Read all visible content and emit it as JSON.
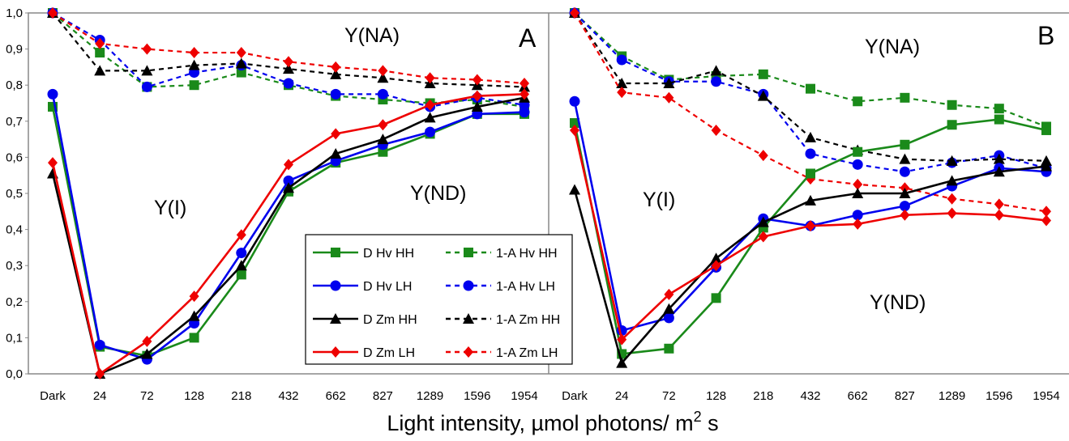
{
  "chart_data": {
    "type": "line",
    "xlabel_main": "Light intensity, µmol photons/ m",
    "xlabel_sup": "2",
    "xlabel_tail": " s",
    "categories": [
      "Dark",
      "24",
      "72",
      "128",
      "218",
      "432",
      "662",
      "827",
      "1289",
      "1596",
      "1954"
    ],
    "ylim": [
      0,
      1
    ],
    "yticks": [
      "0,0",
      "0,1",
      "0,2",
      "0,3",
      "0,4",
      "0,5",
      "0,6",
      "0,7",
      "0,8",
      "0,9",
      "1,0"
    ],
    "legend": {
      "placement": "center-bottom of panel A",
      "entries": [
        {
          "label": "D Hv HH",
          "color": "#1a8a1a",
          "marker": "square",
          "dashed": false
        },
        {
          "label": "1-A Hv HH",
          "color": "#1a8a1a",
          "marker": "square",
          "dashed": true
        },
        {
          "label": "D Hv LH",
          "color": "#0000ee",
          "marker": "circle",
          "dashed": false
        },
        {
          "label": "1-A Hv LH",
          "color": "#0000ee",
          "marker": "circle",
          "dashed": true
        },
        {
          "label": "D Zm HH",
          "color": "#000000",
          "marker": "triangle",
          "dashed": false
        },
        {
          "label": "1-A Zm HH",
          "color": "#000000",
          "marker": "triangle",
          "dashed": true
        },
        {
          "label": "D Zm LH",
          "color": "#ee0000",
          "marker": "diamond",
          "dashed": false
        },
        {
          "label": "1-A Zm LH",
          "color": "#ee0000",
          "marker": "diamond",
          "dashed": true
        }
      ]
    },
    "panels": [
      {
        "letter": "A",
        "region_labels": [
          "Y(NA)",
          "Y(I)",
          "Y(ND)"
        ],
        "series": [
          {
            "name": "1-A Hv HH",
            "values": [
              1.0,
              0.89,
              0.795,
              0.8,
              0.835,
              0.8,
              0.77,
              0.76,
              0.75,
              0.76,
              0.74
            ]
          },
          {
            "name": "1-A Hv LH",
            "values": [
              1.0,
              0.925,
              0.795,
              0.835,
              0.855,
              0.805,
              0.775,
              0.775,
              0.74,
              0.765,
              0.745
            ]
          },
          {
            "name": "1-A Zm HH",
            "values": [
              1.0,
              0.84,
              0.84,
              0.855,
              0.86,
              0.845,
              0.83,
              0.82,
              0.805,
              0.8,
              0.795
            ]
          },
          {
            "name": "1-A Zm LH",
            "values": [
              1.0,
              0.915,
              0.9,
              0.89,
              0.89,
              0.865,
              0.85,
              0.84,
              0.82,
              0.815,
              0.805
            ]
          },
          {
            "name": "D Hv HH",
            "values": [
              0.74,
              0.075,
              0.05,
              0.1,
              0.275,
              0.505,
              0.585,
              0.615,
              0.665,
              0.72,
              0.72
            ]
          },
          {
            "name": "D Hv LH",
            "values": [
              0.775,
              0.08,
              0.04,
              0.14,
              0.335,
              0.535,
              0.59,
              0.635,
              0.67,
              0.72,
              0.725
            ]
          },
          {
            "name": "D Zm HH",
            "values": [
              0.555,
              0.0,
              0.055,
              0.16,
              0.3,
              0.515,
              0.61,
              0.65,
              0.71,
              0.74,
              0.765
            ]
          },
          {
            "name": "D Zm LH",
            "values": [
              0.585,
              0.0,
              0.09,
              0.215,
              0.385,
              0.58,
              0.665,
              0.69,
              0.745,
              0.77,
              0.775
            ]
          }
        ]
      },
      {
        "letter": "B",
        "region_labels": [
          "Y(NA)",
          "Y(I)",
          "Y(ND)"
        ],
        "series": [
          {
            "name": "1-A Hv HH",
            "values": [
              1.0,
              0.88,
              0.815,
              0.825,
              0.83,
              0.79,
              0.755,
              0.765,
              0.745,
              0.735,
              0.685
            ]
          },
          {
            "name": "1-A Hv LH",
            "values": [
              1.0,
              0.87,
              0.81,
              0.81,
              0.775,
              0.61,
              0.58,
              0.56,
              0.585,
              0.605,
              0.57
            ]
          },
          {
            "name": "1-A Zm HH",
            "values": [
              1.0,
              0.805,
              0.805,
              0.84,
              0.77,
              0.655,
              0.62,
              0.595,
              0.59,
              0.595,
              0.59
            ]
          },
          {
            "name": "1-A Zm LH",
            "values": [
              1.0,
              0.78,
              0.765,
              0.675,
              0.605,
              0.54,
              0.525,
              0.515,
              0.485,
              0.47,
              0.45
            ]
          },
          {
            "name": "D Hv HH",
            "values": [
              0.695,
              0.055,
              0.07,
              0.21,
              0.405,
              0.555,
              0.615,
              0.635,
              0.69,
              0.705,
              0.675
            ]
          },
          {
            "name": "D Hv LH",
            "values": [
              0.755,
              0.12,
              0.155,
              0.295,
              0.43,
              0.41,
              0.44,
              0.465,
              0.52,
              0.57,
              0.56
            ]
          },
          {
            "name": "D Zm HH",
            "values": [
              0.51,
              0.03,
              0.18,
              0.32,
              0.42,
              0.48,
              0.5,
              0.5,
              0.535,
              0.56,
              0.575
            ]
          },
          {
            "name": "D Zm LH",
            "values": [
              0.675,
              0.095,
              0.22,
              0.3,
              0.38,
              0.41,
              0.415,
              0.44,
              0.445,
              0.44,
              0.425
            ]
          }
        ]
      }
    ]
  }
}
